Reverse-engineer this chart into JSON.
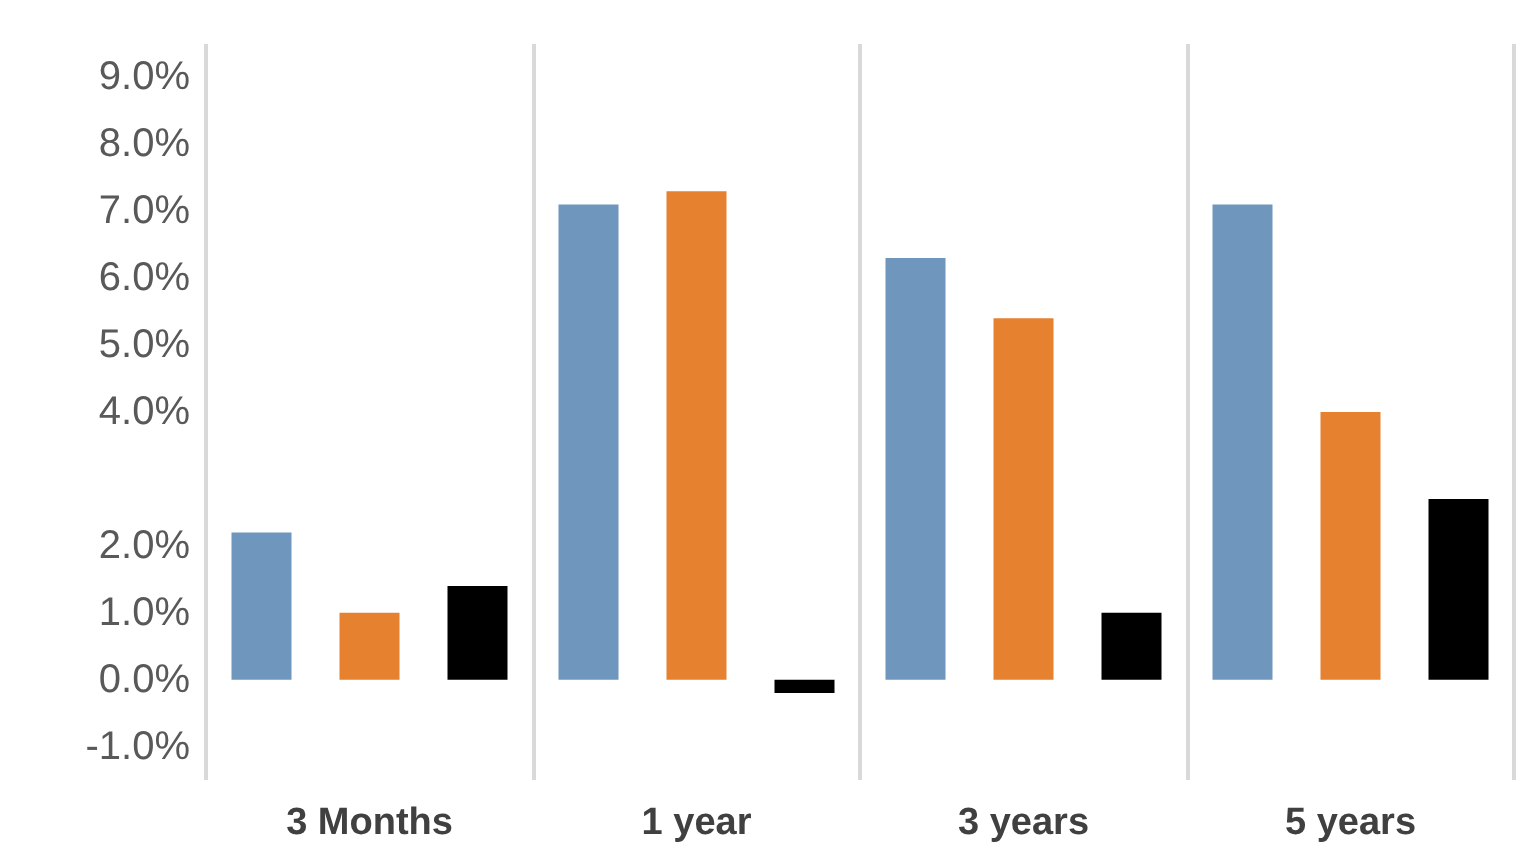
{
  "chart_data": {
    "type": "bar",
    "categories": [
      "3 Months",
      "1 year",
      "3 years",
      "5 years"
    ],
    "series": [
      {
        "color": "#6f96bd",
        "values": [
          2.2,
          7.1,
          6.3,
          7.1
        ]
      },
      {
        "color": "#e6812f",
        "values": [
          1.0,
          7.3,
          5.4,
          4.0
        ]
      },
      {
        "color": "#000000",
        "values": [
          1.4,
          -0.2,
          1.0,
          2.7
        ]
      }
    ],
    "ylim": [
      -1.5,
      9.5
    ],
    "yticks": [
      {
        "value": -1,
        "label": "-1.0%"
      },
      {
        "value": 0,
        "label": "0.0%"
      },
      {
        "value": 1,
        "label": "1.0%"
      },
      {
        "value": 2,
        "label": "2.0%"
      },
      {
        "value": 4,
        "label": "4.0%"
      },
      {
        "value": 5,
        "label": "5.0%"
      },
      {
        "value": 6,
        "label": "6.0%"
      },
      {
        "value": 7,
        "label": "7.0%"
      },
      {
        "value": 8,
        "label": "8.0%"
      },
      {
        "value": 9,
        "label": "9.0%"
      }
    ],
    "grid": "x"
  }
}
